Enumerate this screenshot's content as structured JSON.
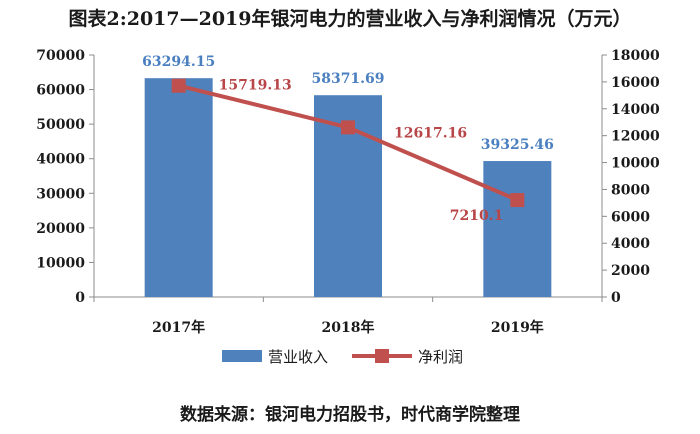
{
  "chart_data": {
    "type": "bar+line",
    "title": "图表2:2017—2019年银河电力的营业收入与净利润情况（万元）",
    "categories": [
      "2017年",
      "2018年",
      "2019年"
    ],
    "series": [
      {
        "name": "营业收入",
        "type": "bar",
        "axis": "left",
        "color": "#4f81bd",
        "values": [
          63294.15,
          58371.69,
          39325.46
        ],
        "labels": [
          "63294.15",
          "58371.69",
          "39325.46"
        ]
      },
      {
        "name": "净利润",
        "type": "line",
        "axis": "right",
        "color": "#c0504d",
        "values": [
          15719.13,
          12617.16,
          7210.1
        ],
        "labels": [
          "15719.13",
          "12617.16",
          "7210.1"
        ]
      }
    ],
    "y_left": {
      "min": 0,
      "max": 70000,
      "step": 10000,
      "ticks": [
        "0",
        "10000",
        "20000",
        "30000",
        "40000",
        "50000",
        "60000",
        "70000"
      ]
    },
    "y_right": {
      "min": 0,
      "max": 18000,
      "step": 2000,
      "ticks": [
        "0",
        "2000",
        "4000",
        "6000",
        "8000",
        "10000",
        "12000",
        "14000",
        "16000",
        "18000"
      ]
    },
    "grid": false,
    "legend": "bottom"
  },
  "source": "数据来源：银河电力招股书，时代商学院整理"
}
